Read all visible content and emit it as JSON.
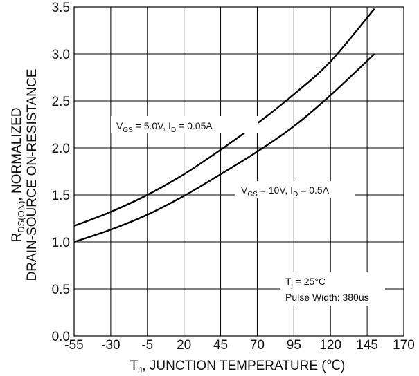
{
  "chart_data": {
    "type": "line",
    "xlabel": {
      "main": "T",
      "sub": "J",
      "rest": ", JUNCTION TEMPERATURE (℃)"
    },
    "ylabel": {
      "line1_main": "R",
      "line1_sub": "DS(ON)",
      "line1_rest": ", NORMALIZED",
      "line2": "DRAIN-SOURCE ON-RESISTANCE"
    },
    "xlim": [
      -55,
      170
    ],
    "ylim": [
      0,
      3.5
    ],
    "xticks": [
      -55,
      -30,
      -5,
      20,
      45,
      70,
      95,
      120,
      145,
      170
    ],
    "xtick_labels": [
      "-55",
      "-30",
      "-5",
      "20",
      "45",
      "70",
      "95",
      "120",
      "145",
      "170"
    ],
    "yticks": [
      0,
      0.5,
      1.0,
      1.5,
      2.0,
      2.5,
      3.0,
      3.5
    ],
    "ytick_labels": [
      "0.0",
      "0.5",
      "1.0",
      "1.5",
      "2.0",
      "2.5",
      "3.0",
      "3.5"
    ],
    "grid": true,
    "series": [
      {
        "label_parts": [
          "V",
          "GS",
          " = 5.0V, I",
          "D",
          " = 0.05A"
        ],
        "x": [
          -55,
          -30,
          -5,
          20,
          45,
          70,
          95,
          120,
          150
        ],
        "y": [
          1.17,
          1.32,
          1.5,
          1.72,
          1.98,
          2.26,
          2.57,
          2.92,
          3.48
        ]
      },
      {
        "label_parts": [
          "V",
          "GS",
          " = 10V, I",
          "D",
          " = 0.5A"
        ],
        "x": [
          -55,
          -30,
          -5,
          20,
          45,
          70,
          95,
          120,
          150
        ],
        "y": [
          1.0,
          1.13,
          1.29,
          1.49,
          1.72,
          1.96,
          2.23,
          2.56,
          3.0
        ]
      }
    ],
    "conditions": {
      "line1_main": "T",
      "line1_sub": "j",
      "line1_rest": " = 25°C",
      "line2": "Pulse Width: 380us"
    }
  }
}
